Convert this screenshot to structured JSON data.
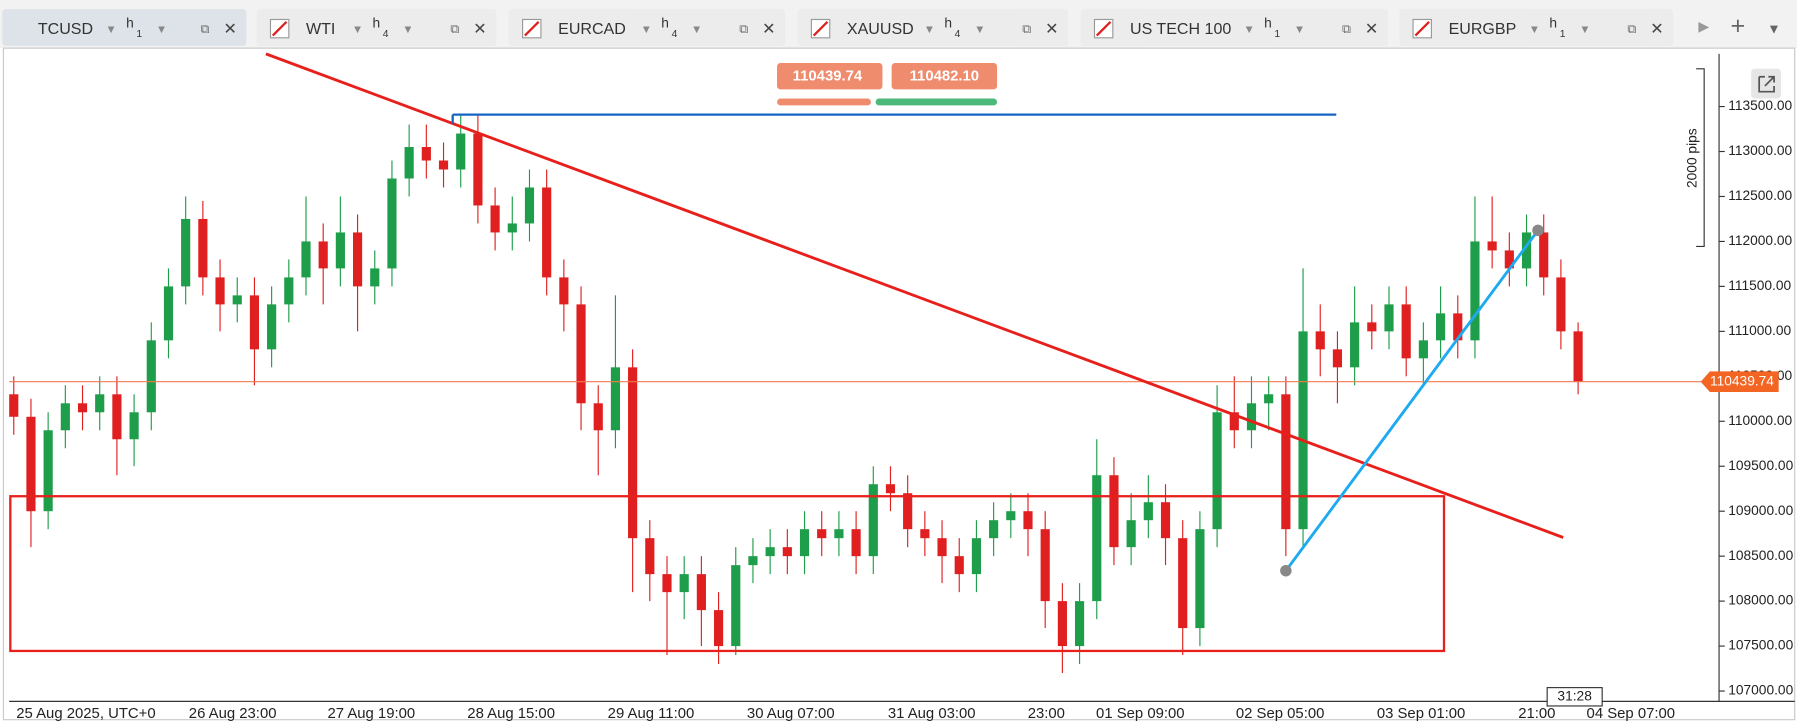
{
  "tabs": [
    {
      "symbol": "TCUSD",
      "timeframe": "h",
      "period": "1"
    },
    {
      "symbol": "WTI",
      "timeframe": "h",
      "period": "4"
    },
    {
      "symbol": "EURCAD",
      "timeframe": "h",
      "period": "4"
    },
    {
      "symbol": "XAUUSD",
      "timeframe": "h",
      "period": "4"
    },
    {
      "symbol": "US TECH 100",
      "timeframe": "h",
      "period": "1"
    },
    {
      "symbol": "EURGBP",
      "timeframe": "h",
      "period": "1"
    }
  ],
  "quote": {
    "sell": "110439.74",
    "buy": "110482.10"
  },
  "chart_data": {
    "type": "candlestick",
    "up_color": "#1e9e4a",
    "down_color": "#e02020",
    "open": [
      110300,
      110050,
      109000,
      109900,
      110200,
      110100,
      110300,
      109800,
      110100,
      110900,
      111500,
      112250,
      111600,
      111300,
      111400,
      110800,
      111300,
      111600,
      112000,
      111700,
      112100,
      111500,
      111700,
      112700,
      113050,
      112900,
      112800,
      113200,
      112400,
      112100,
      112200,
      112600,
      111600,
      111300,
      110200,
      109900,
      110600,
      108700,
      108300,
      108100,
      108300,
      107900,
      107500,
      108400,
      108500,
      108600,
      108500,
      108800,
      108700,
      108800,
      108500,
      109300,
      109200,
      108800,
      108700,
      108500,
      108300,
      108700,
      108900,
      109000,
      108800,
      108000,
      107500,
      108000,
      109400,
      108600,
      108900,
      109100,
      108700,
      107700,
      108800,
      110100,
      109900,
      110200,
      110300,
      108800,
      111000,
      110800,
      110600,
      111100,
      111000,
      111300,
      110700,
      110900,
      111200,
      110900,
      112000,
      111900,
      111700,
      112100,
      111600,
      111000
    ],
    "high": [
      110500,
      110250,
      110100,
      110400,
      110400,
      110500,
      110500,
      110300,
      111100,
      111700,
      112500,
      112450,
      111800,
      111600,
      111600,
      111500,
      111800,
      112500,
      112200,
      112500,
      112300,
      111900,
      112900,
      113300,
      113300,
      113100,
      113400,
      113400,
      112600,
      112500,
      112800,
      112800,
      111800,
      111500,
      110400,
      111400,
      110800,
      108900,
      108500,
      108500,
      108500,
      108100,
      108600,
      108700,
      108800,
      108800,
      109000,
      109000,
      109000,
      109000,
      109500,
      109500,
      109400,
      109000,
      108900,
      108700,
      108900,
      109100,
      109200,
      109200,
      109000,
      108200,
      108200,
      109800,
      109600,
      109200,
      109400,
      109300,
      108900,
      109000,
      110400,
      110500,
      110500,
      110500,
      110500,
      111700,
      111300,
      111000,
      111500,
      111300,
      111500,
      111500,
      111100,
      111500,
      111400,
      112500,
      112500,
      112100,
      112300,
      112300,
      111800,
      111100
    ],
    "low": [
      109850,
      108600,
      108800,
      109700,
      109900,
      109900,
      109400,
      109500,
      109900,
      110700,
      111300,
      111400,
      111000,
      111100,
      110400,
      110600,
      111100,
      111400,
      111300,
      111500,
      111000,
      111300,
      111500,
      112500,
      112700,
      112600,
      112600,
      112200,
      111900,
      111900,
      112000,
      111400,
      111000,
      109900,
      109400,
      109700,
      108100,
      108000,
      107400,
      107800,
      107500,
      107300,
      107400,
      108200,
      108300,
      108300,
      108300,
      108500,
      108500,
      108300,
      108300,
      109000,
      108600,
      108500,
      108200,
      108100,
      108100,
      108500,
      108700,
      108500,
      107700,
      107200,
      107300,
      107800,
      108400,
      108400,
      108700,
      108400,
      107400,
      107500,
      108600,
      109700,
      109700,
      109900,
      108500,
      108600,
      110500,
      110200,
      110400,
      110800,
      110800,
      110500,
      110400,
      110700,
      110700,
      110700,
      111700,
      111500,
      111500,
      111400,
      110800,
      110300
    ],
    "close": [
      110050,
      109000,
      109900,
      110200,
      110100,
      110300,
      109800,
      110100,
      110900,
      111500,
      112250,
      111600,
      111300,
      111400,
      110800,
      111300,
      111600,
      112000,
      111700,
      112100,
      111500,
      111700,
      112700,
      113050,
      112900,
      112800,
      113200,
      112400,
      112100,
      112200,
      112600,
      111600,
      111300,
      110200,
      109900,
      110600,
      108700,
      108300,
      108100,
      108300,
      107900,
      107500,
      108400,
      108500,
      108600,
      108500,
      108800,
      108700,
      108800,
      108500,
      109300,
      109200,
      108800,
      108700,
      108500,
      108300,
      108700,
      108900,
      109000,
      108800,
      108000,
      107500,
      108000,
      109400,
      108600,
      108900,
      109100,
      108700,
      107700,
      108800,
      110100,
      109900,
      110200,
      110300,
      108800,
      111000,
      110800,
      110600,
      111100,
      111000,
      111300,
      110700,
      110900,
      111200,
      110900,
      112000,
      111900,
      111700,
      112100,
      111600,
      111000,
      110440
    ],
    "ylim": [
      106885,
      114086
    ],
    "yticks": [
      {
        "value": 107000,
        "label": "107000.00"
      },
      {
        "value": 107500,
        "label": "107500.00"
      },
      {
        "value": 108000,
        "label": "108000.00"
      },
      {
        "value": 108500,
        "label": "108500.00"
      },
      {
        "value": 109000,
        "label": "109000.00"
      },
      {
        "value": 109500,
        "label": "109500.00"
      },
      {
        "value": 110000,
        "label": "110000.00"
      },
      {
        "value": 110500,
        "label": "110500.00"
      },
      {
        "value": 111000,
        "label": "111000.00"
      },
      {
        "value": 111500,
        "label": "111500.00"
      },
      {
        "value": 112000,
        "label": "112000.00"
      },
      {
        "value": 112500,
        "label": "112500.00"
      },
      {
        "value": 113000,
        "label": "113000.00"
      },
      {
        "value": 113500,
        "label": "113500.00"
      }
    ],
    "xtick_labels": [
      "25 Aug 2025, UTC+0",
      "26 Aug 23:00",
      "27 Aug 19:00",
      "28 Aug 15:00",
      "29 Aug 11:00",
      "30 Aug 07:00",
      "31 Aug 03:00",
      "23:00",
      "01 Sep 09:00",
      "02 Sep 05:00",
      "03 Sep 01:00",
      "21:00",
      "04 Sep 07:00"
    ],
    "last_price": 110439.74,
    "countdown": "31:28",
    "range_label": "2000 pips"
  }
}
